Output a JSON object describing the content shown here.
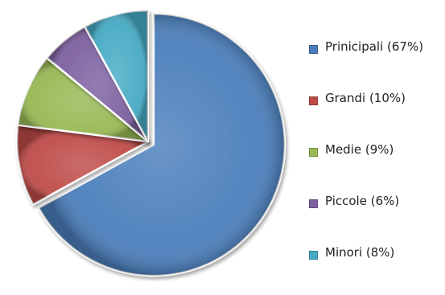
{
  "chart_data": {
    "type": "pie",
    "title": "",
    "slices": [
      {
        "label": "Prinicipali (67%)",
        "value": 67,
        "color": "#4a7ebb"
      },
      {
        "label": "Grandi (10%)",
        "value": 10,
        "color": "#be4b48"
      },
      {
        "label": "Medie (9%)",
        "value": 9,
        "color": "#98b954"
      },
      {
        "label": "Piccole (6%)",
        "value": 6,
        "color": "#7d60a0"
      },
      {
        "label": "Minori (8%)",
        "value": 8,
        "color": "#46aac4"
      }
    ],
    "start_angle_deg": 0,
    "direction": "clockwise",
    "exploded_slice": "Prinicipali (67%)",
    "legend_position": "right",
    "style": "3d-bevel"
  }
}
